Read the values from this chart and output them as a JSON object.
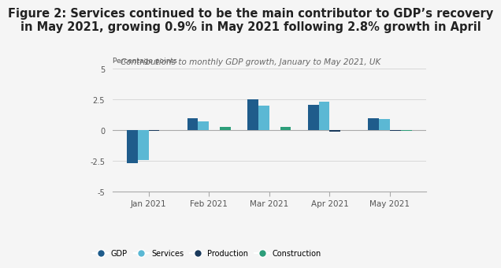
{
  "title": "Figure 2: Services continued to be the main contributor to GDP’s recovery\nin May 2021, growing 0.9% in May 2021 following 2.8% growth in April",
  "subtitle": "Contributions to monthly GDP growth, January to May 2021, UK",
  "ylabel": "Percentage points",
  "months": [
    "Jan 2021",
    "Feb 2021",
    "Mar 2021",
    "Apr 2021",
    "May 2021"
  ],
  "gdp": [
    -2.7,
    1.0,
    2.5,
    2.1,
    1.0
  ],
  "services": [
    -2.4,
    0.7,
    2.0,
    2.3,
    0.9
  ],
  "production": [
    -0.05,
    0.05,
    0.05,
    -0.1,
    -0.05
  ],
  "construction": [
    0.0,
    0.25,
    0.25,
    0.05,
    -0.05
  ],
  "color_gdp": "#1f5c8b",
  "color_services": "#5bb8d4",
  "color_production": "#1a3a5c",
  "color_construction": "#2d9e7a",
  "ylim": [
    -5,
    5
  ],
  "yticks": [
    -5,
    -2.5,
    0,
    2.5,
    5
  ],
  "bg_color": "#f5f5f5",
  "title_fontsize": 10.5,
  "subtitle_fontsize": 7.5
}
